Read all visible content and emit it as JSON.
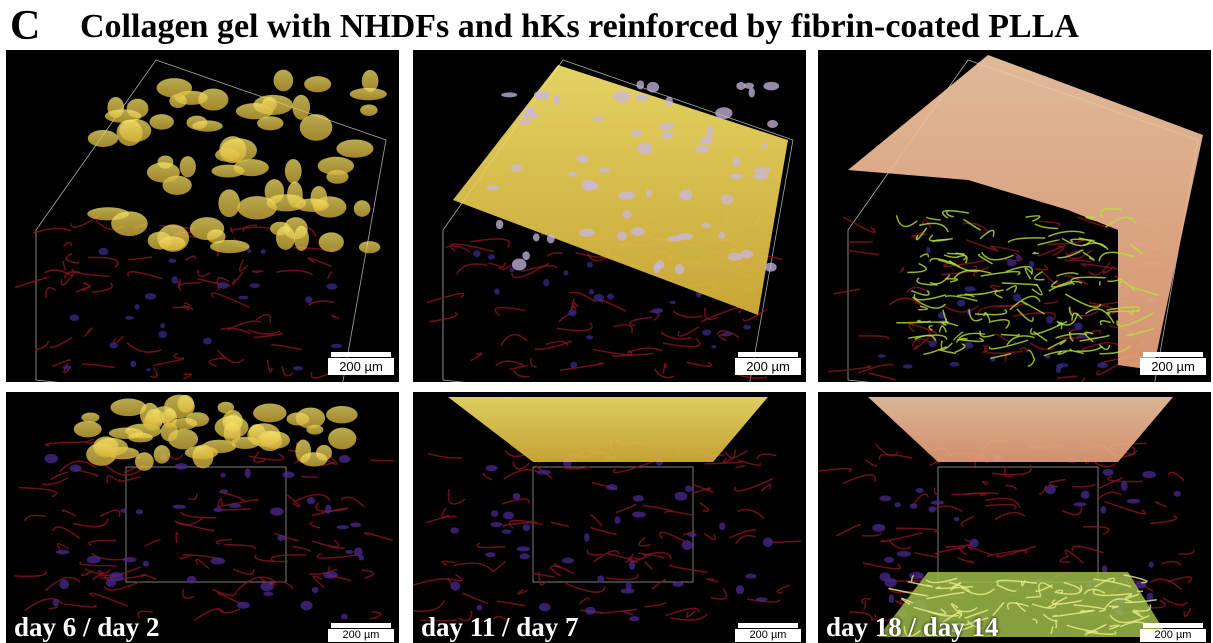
{
  "header": {
    "panel_letter": "C",
    "title": "Collagen gel with NHDFs and hKs reinforced by fibrin-coated PLLA"
  },
  "top_row": [
    {
      "scale_bar": "200 µm"
    },
    {
      "scale_bar": "200 µm"
    },
    {
      "scale_bar": "200 µm"
    }
  ],
  "bottom_row": [
    {
      "label": "day 6 / day 2",
      "scale_bar": "200 µm"
    },
    {
      "label": "day 11 / day 7",
      "scale_bar": "200 µm"
    },
    {
      "label": "day 18 / day 14",
      "scale_bar": "200 µm"
    }
  ]
}
